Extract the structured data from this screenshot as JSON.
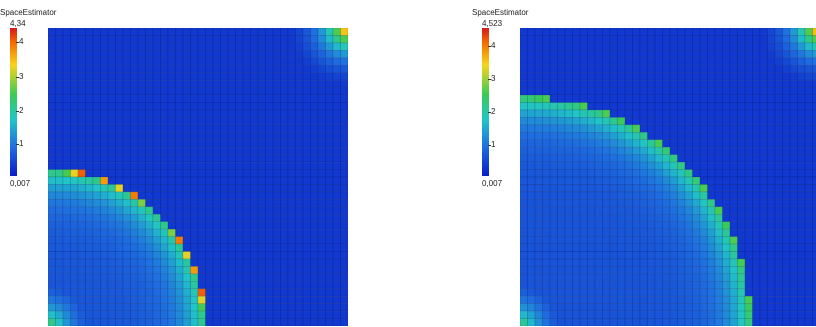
{
  "panels": [
    {
      "title": "SpaceEstimator",
      "max_label": "4,34",
      "min_label": "0,007",
      "ticks": [
        "4",
        "3",
        "2",
        "1"
      ]
    },
    {
      "title": "SpaceEstimator",
      "max_label": "4,523",
      "min_label": "0,007",
      "ticks": [
        "4",
        "3",
        "2",
        "1"
      ]
    }
  ],
  "chart_data": [
    {
      "type": "heatmap",
      "title": "SpaceEstimator",
      "colorbar": {
        "min": 0.007,
        "max": 4.34,
        "ticks": [
          1,
          2,
          3,
          4
        ]
      },
      "grid": {
        "cells_x": 40,
        "cells_y": 40
      },
      "features": {
        "arc": {
          "center": "bottom-left",
          "radius_fraction": 0.53,
          "peak_value": 4.34
        },
        "corner_top_right": {
          "peak_value": 4.3
        },
        "corner_bottom_left": {
          "peak_value": 2.5
        },
        "background_value": 0.3
      }
    },
    {
      "type": "heatmap",
      "title": "SpaceEstimator",
      "colorbar": {
        "min": 0.007,
        "max": 4.523,
        "ticks": [
          1,
          2,
          3,
          4
        ]
      },
      "grid": {
        "cells_x": 40,
        "cells_y": 40
      },
      "features": {
        "arc": {
          "center": "bottom-left",
          "radius_fraction": 0.77,
          "peak_value": 2.6
        },
        "corner_top_right": {
          "peak_value": 4.52
        },
        "corner_bottom_left": {
          "peak_value": 2.5
        },
        "background_value": 0.3
      }
    }
  ]
}
